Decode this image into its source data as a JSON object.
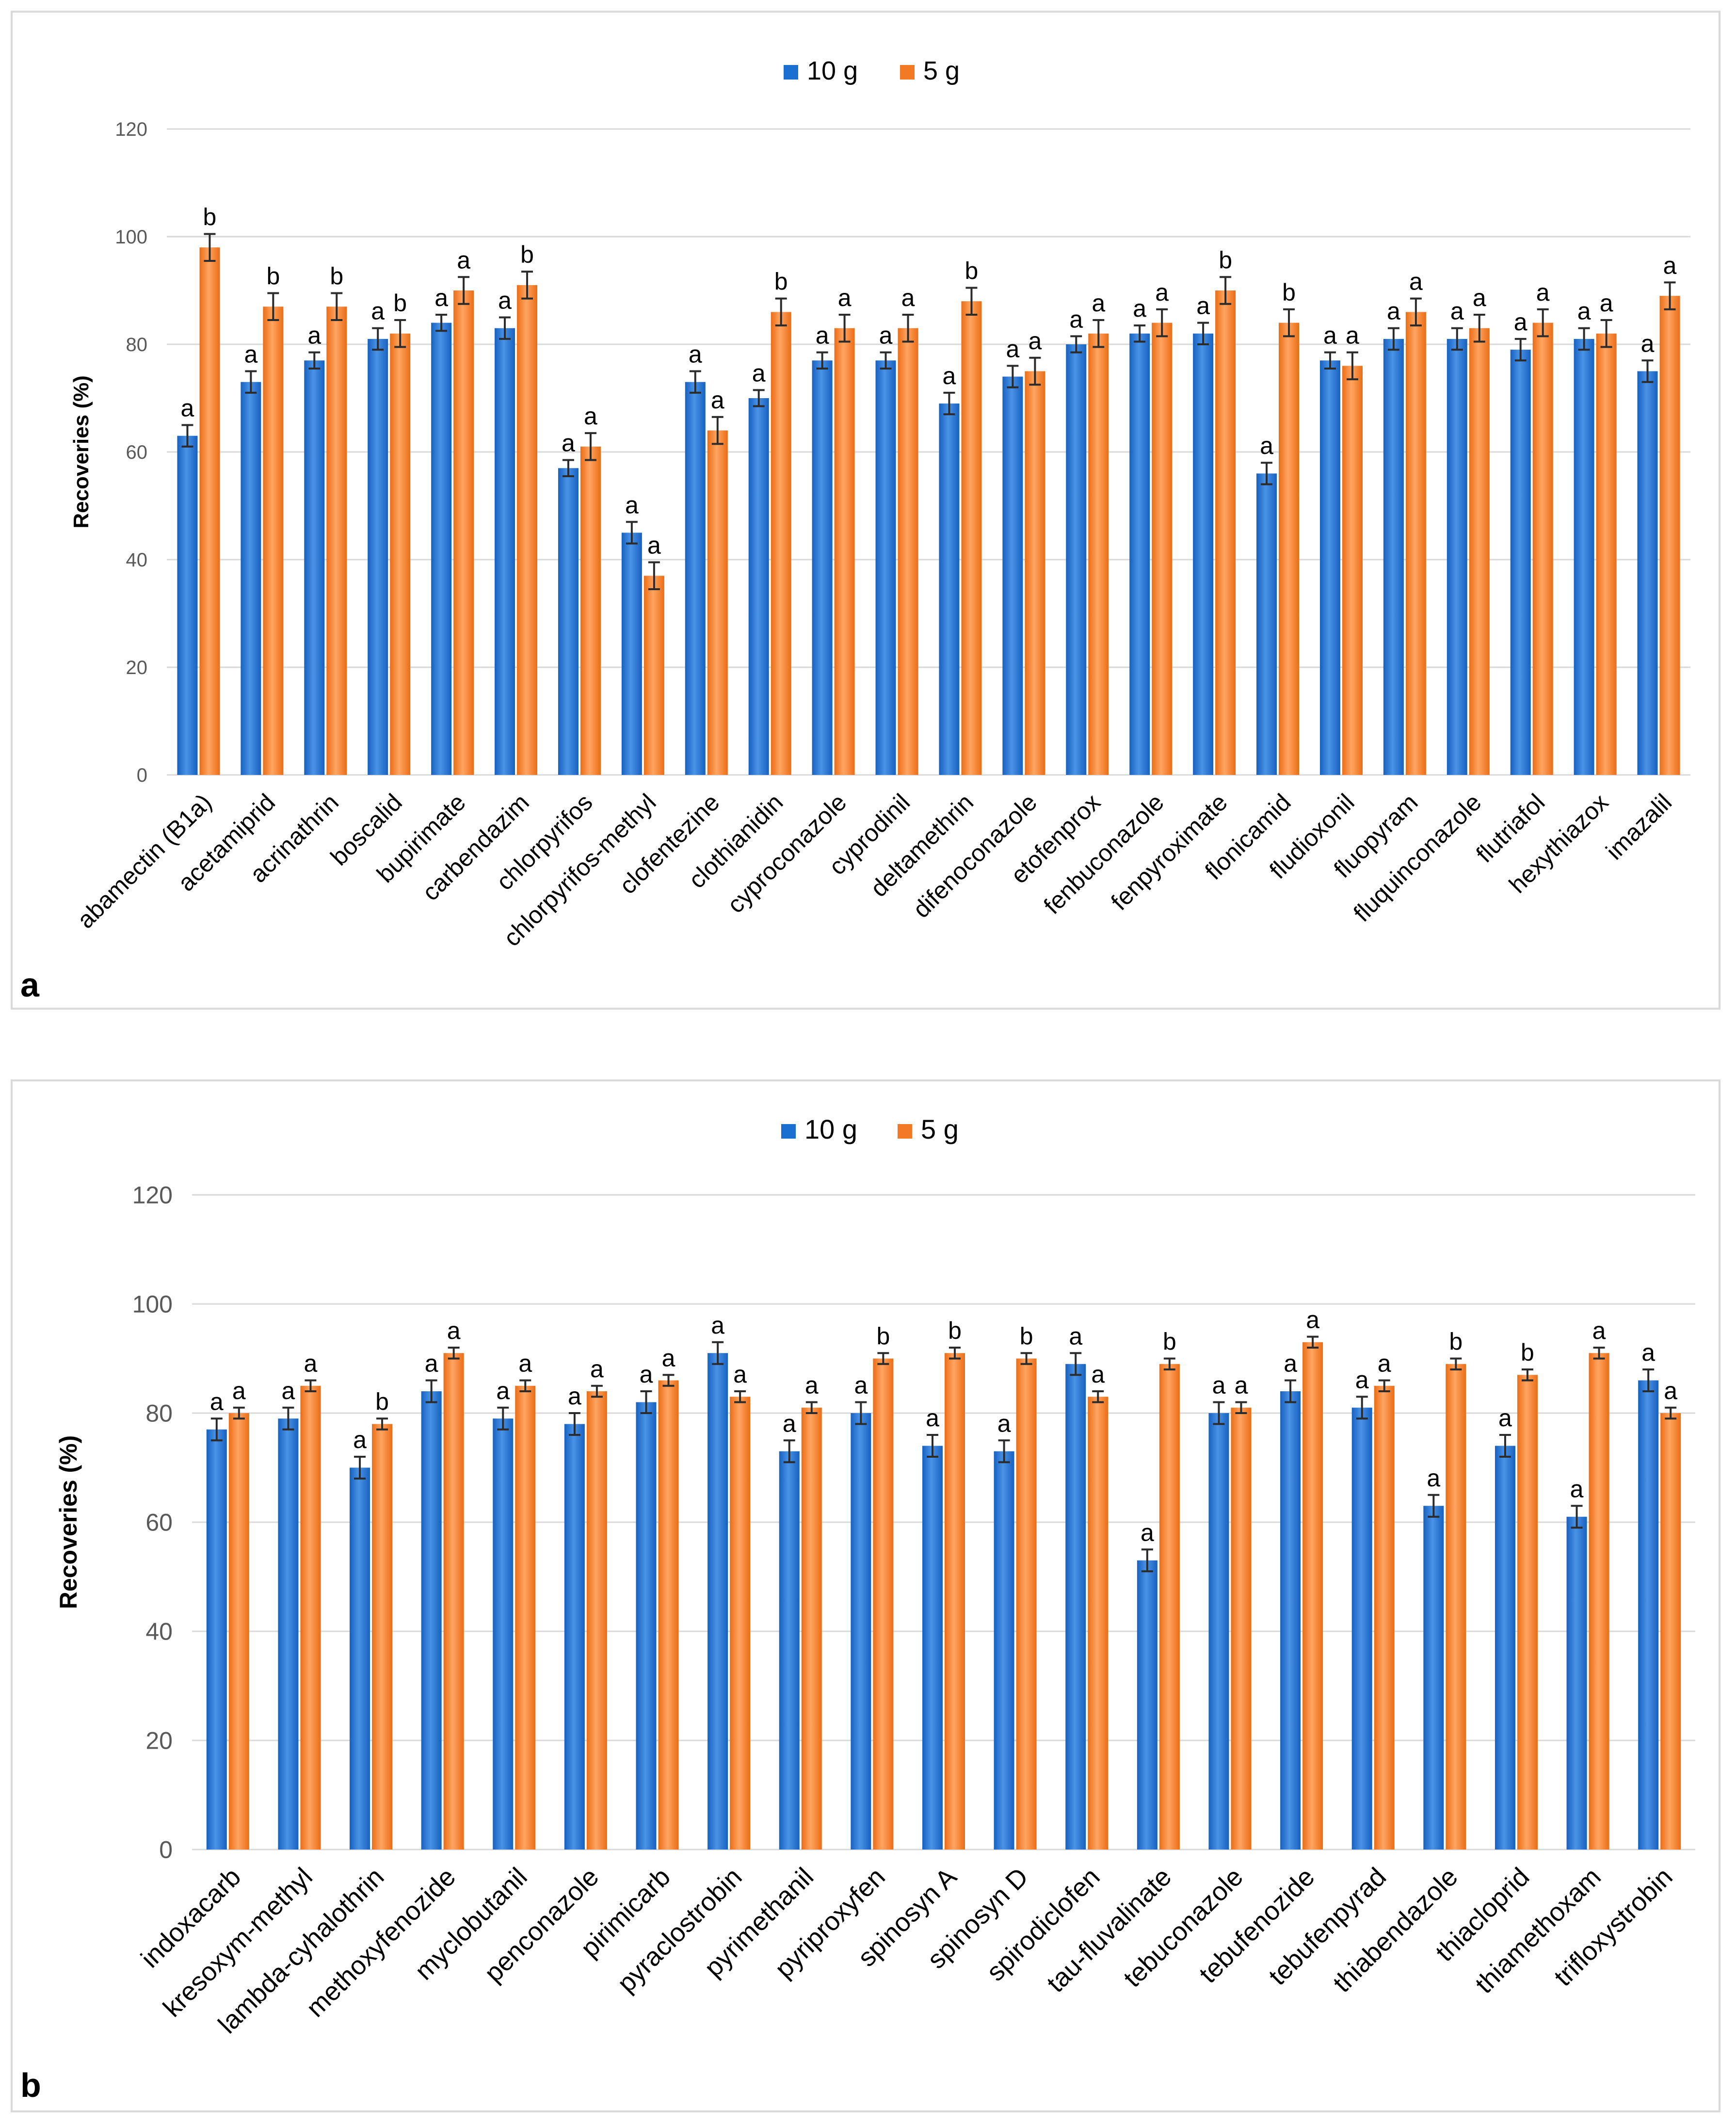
{
  "legend": {
    "series_10g": "10 g",
    "series_5g": "5 g"
  },
  "colors": {
    "series_10g": "#1b6fd1",
    "series_5g": "#f27a25",
    "grid": "#d9d9d9",
    "axis_text": "#595959"
  },
  "chart_data": [
    {
      "panel_label": "a",
      "type": "bar",
      "title": "",
      "xlabel": "",
      "ylabel": "Recoveries (%)",
      "ylim": [
        0,
        120
      ],
      "yticks": [
        0,
        20,
        40,
        60,
        80,
        100,
        120
      ],
      "grid": true,
      "legend_position": "top-center",
      "categories": [
        "abamectin (B1a)",
        "acetamiprid",
        "acrinathrin",
        "boscalid",
        "bupirimate",
        "carbendazim",
        "chlorpyrifos",
        "chlorpyrifos-methyl",
        "clofentezine",
        "clothianidin",
        "cyproconazole",
        "cyprodinil",
        "deltamethrin",
        "difenoconazole",
        "etofenprox",
        "fenbuconazole",
        "fenpyroximate",
        "flonicamid",
        "fludioxonil",
        "fluopyram",
        "fluquinconazole",
        "flutriafol",
        "hexythiazox",
        "imazalil"
      ],
      "series": [
        {
          "name": "10 g",
          "values": [
            63,
            73,
            77,
            81,
            84,
            83,
            57,
            45,
            73,
            70,
            77,
            77,
            69,
            74,
            80,
            82,
            82,
            56,
            77,
            81,
            81,
            79,
            81,
            75
          ],
          "errors": [
            2,
            2,
            1.5,
            2,
            1.5,
            2,
            1.5,
            2,
            2,
            1.5,
            1.5,
            1.5,
            2,
            2,
            1.5,
            1.5,
            2,
            2,
            1.5,
            2,
            2,
            2,
            2,
            2
          ],
          "letters": [
            "a",
            "a",
            "a",
            "a",
            "a",
            "a",
            "a",
            "a",
            "a",
            "a",
            "a",
            "a",
            "a",
            "a",
            "a",
            "a",
            "a",
            "a",
            "a",
            "a",
            "a",
            "a",
            "a",
            "a"
          ]
        },
        {
          "name": "5 g",
          "values": [
            98,
            87,
            87,
            82,
            90,
            91,
            61,
            37,
            64,
            86,
            83,
            83,
            88,
            75,
            82,
            84,
            90,
            84,
            76,
            86,
            83,
            84,
            82,
            89
          ],
          "errors": [
            2.5,
            2.5,
            2.5,
            2.5,
            2.5,
            2.5,
            2.5,
            2.5,
            2.5,
            2.5,
            2.5,
            2.5,
            2.5,
            2.5,
            2.5,
            2.5,
            2.5,
            2.5,
            2.5,
            2.5,
            2.5,
            2.5,
            2.5,
            2.5
          ],
          "letters": [
            "b",
            "b",
            "b",
            "b",
            "a",
            "b",
            "a",
            "a",
            "a",
            "b",
            "a",
            "a",
            "b",
            "a",
            "a",
            "a",
            "b",
            "b",
            "a",
            "a",
            "a",
            "a",
            "a",
            "a"
          ]
        }
      ]
    },
    {
      "panel_label": "b",
      "type": "bar",
      "title": "",
      "xlabel": "",
      "ylabel": "Recoveries (%)",
      "ylim": [
        0,
        120
      ],
      "yticks": [
        0,
        20,
        40,
        60,
        80,
        100,
        120
      ],
      "grid": true,
      "legend_position": "top-center",
      "categories": [
        "indoxacarb",
        "kresoxym-methyl",
        "lambda-cyhalothrin",
        "methoxyfenozide",
        "myclobutanil",
        "penconazole",
        "pirimicarb",
        "pyraclostrobin",
        "pyrimethanil",
        "pyriproxyfen",
        "spinosyn A",
        "spinosyn D",
        "spirodiclofen",
        "tau-fluvalinate",
        "tebuconazole",
        "tebufenozide",
        "tebufenpyrad",
        "thiabendazole",
        "thiacloprid",
        "thiamethoxam",
        "trifloxystrobin"
      ],
      "series": [
        {
          "name": "10 g",
          "values": [
            77,
            79,
            70,
            84,
            79,
            78,
            82,
            91,
            73,
            80,
            74,
            73,
            89,
            53,
            80,
            84,
            81,
            63,
            74,
            61,
            86
          ],
          "errors": [
            2,
            2,
            2,
            2,
            2,
            2,
            2,
            2,
            2,
            2,
            2,
            2,
            2,
            2,
            2,
            2,
            2,
            2,
            2,
            2,
            2
          ],
          "letters": [
            "a",
            "a",
            "a",
            "a",
            "a",
            "a",
            "a",
            "a",
            "a",
            "a",
            "a",
            "a",
            "a",
            "a",
            "a",
            "a",
            "a",
            "a",
            "a",
            "a",
            "a"
          ]
        },
        {
          "name": "5 g",
          "values": [
            80,
            85,
            78,
            91,
            85,
            84,
            86,
            83,
            81,
            90,
            91,
            90,
            83,
            89,
            81,
            93,
            85,
            89,
            87,
            91,
            80
          ],
          "errors": [
            1,
            1,
            1,
            1,
            1,
            1,
            1,
            1,
            1,
            1,
            1,
            1,
            1,
            1,
            1,
            1,
            1,
            1,
            1,
            1,
            1
          ],
          "letters": [
            "a",
            "a",
            "b",
            "a",
            "a",
            "a",
            "a",
            "a",
            "a",
            "b",
            "b",
            "b",
            "a",
            "b",
            "a",
            "a",
            "a",
            "b",
            "b",
            "a",
            "a"
          ]
        }
      ]
    }
  ]
}
